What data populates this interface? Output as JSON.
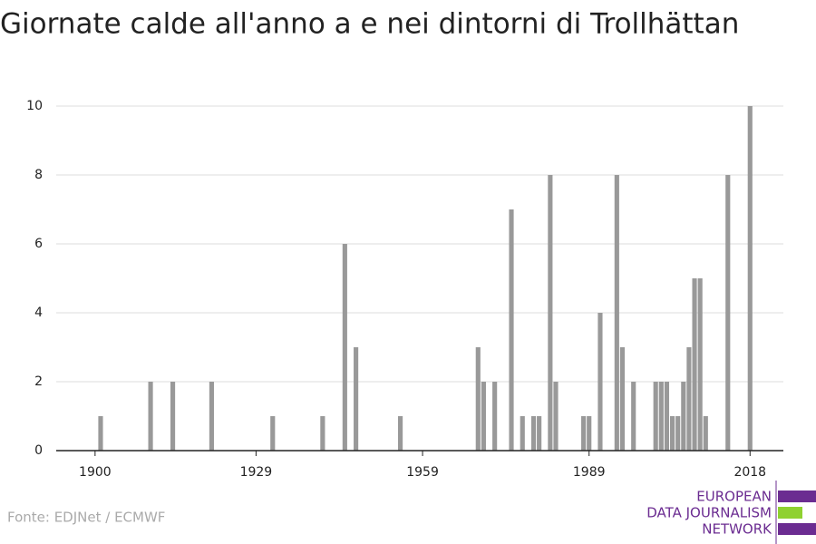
{
  "chart_data": {
    "type": "bar",
    "title": "Giornate calde all'anno a e nei dintorni di Trollhättan",
    "x": [
      1901,
      1910,
      1914,
      1921,
      1932,
      1941,
      1945,
      1947,
      1955,
      1969,
      1970,
      1972,
      1975,
      1977,
      1979,
      1980,
      1982,
      1983,
      1988,
      1989,
      1991,
      1994,
      1995,
      1997,
      2001,
      2002,
      2003,
      2004,
      2005,
      2006,
      2007,
      2008,
      2009,
      2010,
      2014,
      2018
    ],
    "values": [
      1,
      2,
      2,
      2,
      1,
      1,
      6,
      3,
      1,
      3,
      2,
      2,
      7,
      1,
      1,
      1,
      8,
      2,
      1,
      1,
      4,
      8,
      3,
      2,
      2,
      2,
      2,
      1,
      1,
      2,
      3,
      5,
      5,
      1,
      8,
      10
    ],
    "color": "#999999",
    "xlim": [
      1893,
      2024
    ],
    "xticks": [
      1900,
      1929,
      1959,
      1989,
      2018
    ],
    "ylim": [
      0,
      10
    ],
    "yticks": [
      0,
      2,
      4,
      6,
      8,
      10
    ],
    "grid": true
  },
  "source": "Fonte: EDJNet / ECMWF",
  "logo": [
    "EUROPEAN",
    "DATA JOURNALISM",
    "NETWORK"
  ]
}
